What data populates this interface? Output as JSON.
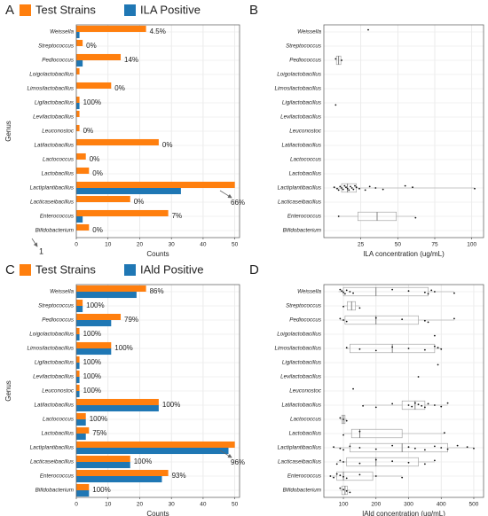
{
  "chart_data": [
    {
      "type": "bar",
      "panel": "A",
      "ylabel": "Genus",
      "xlabel": "Counts",
      "categories": [
        "Weissella",
        "Streptococcus",
        "Pediococcus",
        "Loigolactobacillus",
        "Limosilactobacillus",
        "Ligilactobacillus",
        "Levilactobacillus",
        "Leuconostoc",
        "Latilactobacillus",
        "Lactococcus",
        "Lactobacillus",
        "Lactiplantibacillus",
        "Lacticaseibacillus",
        "Enterococcus",
        "Bifidobacterium"
      ],
      "series": [
        {
          "name": "Test Strains",
          "color": "#ff7f0e",
          "values": [
            22,
            2,
            14,
            1,
            11,
            1,
            1,
            1,
            26,
            3,
            4,
            50,
            17,
            29,
            4
          ]
        },
        {
          "name": "ILA Positive",
          "color": "#1f77b4",
          "values": [
            1,
            0,
            2,
            0,
            0,
            1,
            0,
            0,
            0,
            0,
            0,
            33,
            0,
            2,
            0
          ]
        }
      ],
      "percent_labels": [
        "4.5%",
        "0%",
        "14%",
        null,
        "0%",
        "100%",
        null,
        "0%",
        "0%",
        "0%",
        "0%",
        "66%",
        "0%",
        "7%",
        "0%"
      ],
      "annotation": "1",
      "xlim": [
        0,
        51.5
      ],
      "xticks": [
        0,
        10,
        20,
        30,
        40,
        50
      ],
      "grid": true
    },
    {
      "type": "box",
      "panel": "B",
      "xlabel": "ILA concentration (ug/mL)",
      "categories": [
        "Weissella",
        "Streptococcus",
        "Pediococcus",
        "Loigolactobacillus",
        "Limosilactobacillus",
        "Ligilactobacillus",
        "Levilactobacillus",
        "Leuconostoc",
        "Latilactobacillus",
        "Lactococcus",
        "Lactobacillus",
        "Lactiplantibacillus",
        "Lacticaseibacillus",
        "Enterococcus",
        "Bifidobacterium"
      ],
      "points": [
        [
          30
        ],
        [],
        [
          8,
          12
        ],
        [],
        [],
        [
          8
        ],
        [],
        [],
        [],
        [],
        [],
        [
          7,
          9,
          10,
          11,
          12,
          13,
          14,
          15,
          16,
          17,
          18,
          19,
          20,
          21,
          22,
          24,
          28,
          31,
          35,
          40,
          55,
          60,
          102
        ],
        [],
        [
          10,
          62
        ],
        []
      ],
      "boxes": [
        null,
        null,
        [
          8,
          8.5,
          10,
          11.5,
          12
        ],
        null,
        null,
        null,
        null,
        null,
        null,
        null,
        null,
        [
          7,
          12,
          16,
          22,
          102
        ],
        null,
        [
          10,
          23,
          36,
          49,
          62
        ],
        null
      ],
      "xlim": [
        0,
        108
      ],
      "xticks": [
        25,
        50,
        75,
        100
      ],
      "grid": true
    },
    {
      "type": "bar",
      "panel": "C",
      "ylabel": "Genus",
      "xlabel": "Counts",
      "categories": [
        "Weissella",
        "Streptococcus",
        "Pediococcus",
        "Loigolactobacillus",
        "Limosilactobacillus",
        "Ligilactobacillus",
        "Levilactobacillus",
        "Leuconostoc",
        "Latilactobacillus",
        "Lactococcus",
        "Lactobacillus",
        "Lactiplantibacillus",
        "Lacticaseibacillus",
        "Enterococcus",
        "Bifidobacterium"
      ],
      "series": [
        {
          "name": "Test Strains",
          "color": "#ff7f0e",
          "values": [
            22,
            2,
            14,
            1,
            11,
            1,
            1,
            1,
            26,
            3,
            4,
            50,
            17,
            29,
            4
          ]
        },
        {
          "name": "IAld Positive",
          "color": "#1f77b4",
          "values": [
            19,
            2,
            11,
            1,
            11,
            1,
            1,
            1,
            26,
            3,
            3,
            48,
            17,
            27,
            4
          ]
        }
      ],
      "percent_labels": [
        "86%",
        "100%",
        "79%",
        "100%",
        "100%",
        "100%",
        "100%",
        "100%",
        "100%",
        "100%",
        "75%",
        "96%",
        "100%",
        "93%",
        "100%"
      ],
      "xlim": [
        0,
        51.5
      ],
      "xticks": [
        0,
        10,
        20,
        30,
        40,
        50
      ],
      "grid": true
    },
    {
      "type": "box",
      "panel": "D",
      "xlabel": "IAld concentration (ug/mL)",
      "categories": [
        "Weissella",
        "Streptococcus",
        "Pediococcus",
        "Loigolactobacillus",
        "Limosilactobacillus",
        "Ligilactobacillus",
        "Levilactobacillus",
        "Leuconostoc",
        "Latilactobacillus",
        "Lactococcus",
        "Lactobacillus",
        "Lactiplantibacillus",
        "Lacticaseibacillus",
        "Enterococcus",
        "Bifidobacterium"
      ],
      "points": [
        [
          90,
          95,
          100,
          105,
          110,
          120,
          130,
          250,
          300,
          350,
          360,
          370,
          380,
          440
        ],
        [
          100,
          150
        ],
        [
          90,
          100,
          110,
          200,
          280,
          350,
          360,
          440
        ],
        [
          380
        ],
        [
          110,
          150,
          200,
          250,
          300,
          350,
          380,
          390,
          400
        ],
        [
          390
        ],
        [
          330
        ],
        [
          130
        ],
        [
          160,
          200,
          250,
          300,
          310,
          320,
          330,
          340,
          350,
          360,
          380,
          400,
          420
        ],
        [
          90,
          100,
          110
        ],
        [
          100,
          150,
          410
        ],
        [
          70,
          90,
          100,
          120,
          150,
          200,
          250,
          300,
          320,
          350,
          380,
          400,
          420,
          450,
          480,
          500
        ],
        [
          80,
          90,
          100,
          150,
          200,
          250,
          300,
          350,
          380
        ],
        [
          60,
          70,
          80,
          90,
          100,
          110,
          150,
          200,
          280
        ],
        [
          90,
          100,
          110,
          120
        ]
      ],
      "boxes": [
        [
          85,
          100,
          200,
          360,
          440
        ],
        [
          100,
          112,
          125,
          137,
          150
        ],
        [
          90,
          105,
          200,
          330,
          440
        ],
        null,
        [
          110,
          120,
          250,
          380,
          400
        ],
        null,
        null,
        null,
        [
          160,
          280,
          320,
          350,
          420
        ],
        [
          90,
          95,
          100,
          105,
          110
        ],
        [
          100,
          125,
          150,
          280,
          410
        ],
        [
          70,
          120,
          280,
          420,
          500
        ],
        [
          80,
          110,
          200,
          330,
          380
        ],
        [
          60,
          80,
          100,
          190,
          280
        ],
        [
          90,
          95,
          105,
          112,
          120
        ]
      ],
      "xlim": [
        40,
        530
      ],
      "xticks": [
        100,
        200,
        300,
        400,
        500
      ],
      "grid": true
    }
  ]
}
